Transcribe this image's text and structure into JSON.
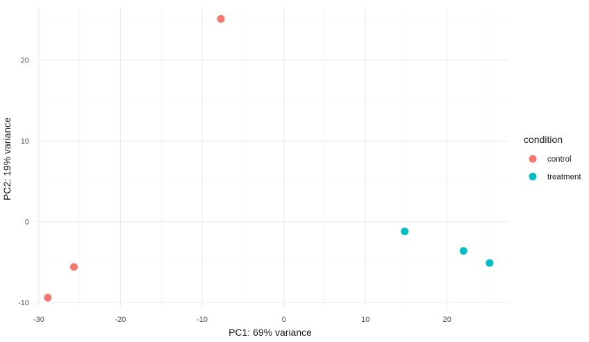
{
  "chart_data": {
    "type": "scatter",
    "title": "",
    "xlabel": "PC1: 69% variance",
    "ylabel": "PC2: 19% variance",
    "xlim": [
      -30.5,
      27.5
    ],
    "ylim": [
      -10.5,
      26.5
    ],
    "x_ticks": [
      -30,
      -20,
      -10,
      0,
      10,
      20
    ],
    "y_ticks": [
      -10,
      0,
      10,
      20
    ],
    "grid": true,
    "legend": {
      "title": "condition",
      "placement": "right"
    },
    "series": [
      {
        "name": "control",
        "color": "#F8766D",
        "points": [
          {
            "x": -7.7,
            "y": 25.1
          },
          {
            "x": -25.7,
            "y": -5.6
          },
          {
            "x": -28.9,
            "y": -9.4
          }
        ]
      },
      {
        "name": "treatment",
        "color": "#00BFC4",
        "points": [
          {
            "x": 14.8,
            "y": -1.2
          },
          {
            "x": 22.0,
            "y": -3.6
          },
          {
            "x": 25.2,
            "y": -5.1
          }
        ]
      }
    ]
  }
}
